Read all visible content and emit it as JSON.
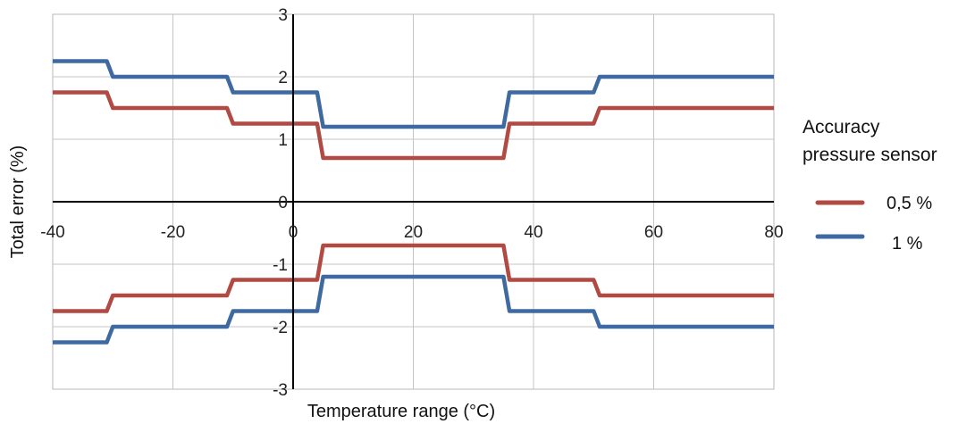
{
  "chart_data": {
    "type": "line",
    "xlabel": "Temperature range (°C)",
    "ylabel": "Total error (%)",
    "xlim": [
      -40,
      80
    ],
    "ylim": [
      -3,
      3
    ],
    "x_ticks": [
      -40,
      -20,
      0,
      20,
      40,
      60,
      80
    ],
    "y_ticks": [
      -3,
      -2,
      -1,
      0,
      1,
      2,
      3
    ],
    "x_tick_labels": [
      "-40",
      "-20",
      "0",
      "20",
      "40",
      "60",
      "80"
    ],
    "y_tick_labels": [
      "-3",
      "-2",
      "-1",
      "0",
      "1",
      "2",
      "3"
    ],
    "grid": true,
    "legend_title": "Accuracy pressure sensor",
    "legend_title_lines": [
      "Accuracy",
      "pressure sensor"
    ],
    "legend_position": "right",
    "series": [
      {
        "name": "0,5 %",
        "color": "#b04a43",
        "upper": [
          [
            -40,
            1.75
          ],
          [
            -31,
            1.75
          ],
          [
            -30,
            1.5
          ],
          [
            -11,
            1.5
          ],
          [
            -10,
            1.25
          ],
          [
            4,
            1.25
          ],
          [
            5,
            0.7
          ],
          [
            35,
            0.7
          ],
          [
            36,
            1.25
          ],
          [
            50,
            1.25
          ],
          [
            51,
            1.5
          ],
          [
            80,
            1.5
          ]
        ],
        "lower": [
          [
            -40,
            -1.75
          ],
          [
            -31,
            -1.75
          ],
          [
            -30,
            -1.5
          ],
          [
            -11,
            -1.5
          ],
          [
            -10,
            -1.25
          ],
          [
            4,
            -1.25
          ],
          [
            5,
            -0.7
          ],
          [
            35,
            -0.7
          ],
          [
            36,
            -1.25
          ],
          [
            50,
            -1.25
          ],
          [
            51,
            -1.5
          ],
          [
            80,
            -1.5
          ]
        ]
      },
      {
        "name": "1 %",
        "color": "#3e6aa1",
        "upper": [
          [
            -40,
            2.25
          ],
          [
            -31,
            2.25
          ],
          [
            -30,
            2.0
          ],
          [
            -11,
            2.0
          ],
          [
            -10,
            1.75
          ],
          [
            4,
            1.75
          ],
          [
            5,
            1.2
          ],
          [
            35,
            1.2
          ],
          [
            36,
            1.75
          ],
          [
            50,
            1.75
          ],
          [
            51,
            2.0
          ],
          [
            80,
            2.0
          ]
        ],
        "lower": [
          [
            -40,
            -2.25
          ],
          [
            -31,
            -2.25
          ],
          [
            -30,
            -2.0
          ],
          [
            -11,
            -2.0
          ],
          [
            -10,
            -1.75
          ],
          [
            4,
            -1.75
          ],
          [
            5,
            -1.2
          ],
          [
            35,
            -1.2
          ],
          [
            36,
            -1.75
          ],
          [
            50,
            -1.75
          ],
          [
            51,
            -2.0
          ],
          [
            80,
            -2.0
          ]
        ]
      }
    ]
  }
}
